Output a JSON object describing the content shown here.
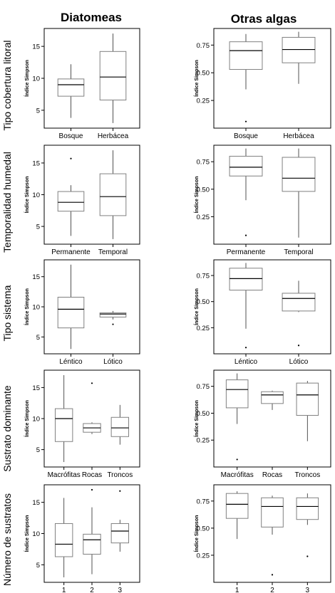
{
  "column_titles": [
    "Diatomeas",
    "Otras algas"
  ],
  "row_titles": [
    "Tipo cobertura  litoral",
    "Temporalidad humedal",
    "Tipo sistema",
    "Sustrato dominante",
    "Número de sustratos"
  ],
  "colors": {
    "box_stroke": "#808080",
    "whisker": "#404040",
    "median": "#000000",
    "frame": "#000000"
  },
  "chart_data": [
    {
      "type": "box",
      "column": "Diatomeas",
      "row": "Tipo cobertura  litoral",
      "ylabel": "Índice Simpson",
      "ylim": [
        2.2,
        17.8
      ],
      "yticks": [
        5,
        10,
        15
      ],
      "yticklabels": [
        "5",
        "10",
        "15"
      ],
      "categories": [
        "Bosque",
        "Herbácea"
      ],
      "boxes": [
        {
          "category": "Bosque",
          "whislo": 3.8,
          "q1": 7.2,
          "med": 9.0,
          "q3": 9.9,
          "whishi": 12.2,
          "outliers": []
        },
        {
          "category": "Herbácea",
          "whislo": 3.0,
          "q1": 6.6,
          "med": 10.2,
          "q3": 14.2,
          "whishi": 17.0,
          "outliers": []
        }
      ]
    },
    {
      "type": "box",
      "column": "Otras algas",
      "row": "Tipo cobertura  litoral",
      "ylabel": "Índice Simpson",
      "ylim": [
        0.0,
        0.9
      ],
      "yticks": [
        0.25,
        0.5,
        0.75
      ],
      "yticklabels": [
        "0.25",
        "0.50",
        "0.75"
      ],
      "categories": [
        "Bosque",
        "Herbácea"
      ],
      "boxes": [
        {
          "category": "Bosque",
          "whislo": 0.35,
          "q1": 0.53,
          "med": 0.7,
          "q3": 0.78,
          "whishi": 0.85,
          "outliers": [
            0.06
          ]
        },
        {
          "category": "Herbácea",
          "whislo": 0.4,
          "q1": 0.59,
          "med": 0.71,
          "q3": 0.82,
          "whishi": 0.87,
          "outliers": []
        }
      ]
    },
    {
      "type": "box",
      "column": "Diatomeas",
      "row": "Temporalidad humedal",
      "ylabel": "Índice Simpson",
      "ylim": [
        2.2,
        17.8
      ],
      "yticks": [
        5,
        10,
        15
      ],
      "yticklabels": [
        "5",
        "10",
        "15"
      ],
      "categories": [
        "Permanente",
        "Temporal"
      ],
      "boxes": [
        {
          "category": "Permanente",
          "whislo": 3.5,
          "q1": 7.4,
          "med": 8.8,
          "q3": 10.5,
          "whishi": 11.5,
          "outliers": [
            15.7
          ]
        },
        {
          "category": "Temporal",
          "whislo": 3.0,
          "q1": 6.7,
          "med": 9.7,
          "q3": 13.3,
          "whishi": 17.0,
          "outliers": []
        }
      ]
    },
    {
      "type": "box",
      "column": "Otras algas",
      "row": "Temporalidad humedal",
      "ylabel": "Índice Simpson",
      "ylim": [
        0.0,
        0.9
      ],
      "yticks": [
        0.25,
        0.5,
        0.75
      ],
      "yticklabels": [
        "0.25",
        "0.50",
        "0.75"
      ],
      "categories": [
        "Permanente",
        "Temporal"
      ],
      "boxes": [
        {
          "category": "Permanente",
          "whislo": 0.4,
          "q1": 0.62,
          "med": 0.7,
          "q3": 0.8,
          "whishi": 0.87,
          "outliers": [
            0.08
          ]
        },
        {
          "category": "Temporal",
          "whislo": 0.06,
          "q1": 0.48,
          "med": 0.6,
          "q3": 0.79,
          "whishi": 0.87,
          "outliers": []
        }
      ]
    },
    {
      "type": "box",
      "column": "Diatomeas",
      "row": "Tipo sistema",
      "ylabel": "Índice Simpson",
      "ylim": [
        2.2,
        17.8
      ],
      "yticks": [
        5,
        10,
        15
      ],
      "yticklabels": [
        "5",
        "10",
        "15"
      ],
      "categories": [
        "Léntico",
        "Lótico"
      ],
      "boxes": [
        {
          "category": "Léntico",
          "whislo": 3.0,
          "q1": 6.5,
          "med": 9.6,
          "q3": 11.6,
          "whishi": 17.0,
          "outliers": []
        },
        {
          "category": "Lótico",
          "whislo": 7.9,
          "q1": 8.3,
          "med": 8.8,
          "q3": 9.0,
          "whishi": 9.3,
          "outliers": [
            7.1
          ]
        }
      ]
    },
    {
      "type": "box",
      "column": "Otras algas",
      "row": "Tipo sistema",
      "ylabel": "Índice Simpson",
      "ylim": [
        0.0,
        0.9
      ],
      "yticks": [
        0.25,
        0.5,
        0.75
      ],
      "yticklabels": [
        "0.25",
        "0.50",
        "0.75"
      ],
      "categories": [
        "Léntico",
        "Lótico"
      ],
      "boxes": [
        {
          "category": "Léntico",
          "whislo": 0.24,
          "q1": 0.61,
          "med": 0.72,
          "q3": 0.82,
          "whishi": 0.87,
          "outliers": [
            0.06
          ]
        },
        {
          "category": "Lótico",
          "whislo": 0.4,
          "q1": 0.41,
          "med": 0.53,
          "q3": 0.58,
          "whishi": 0.7,
          "outliers": [
            0.08
          ]
        }
      ]
    },
    {
      "type": "box",
      "column": "Diatomeas",
      "row": "Sustrato dominante",
      "ylabel": "Índice Simpson",
      "ylim": [
        2.2,
        17.8
      ],
      "yticks": [
        5,
        10,
        15
      ],
      "yticklabels": [
        "5",
        "10",
        "15"
      ],
      "categories": [
        "Macrófitas",
        "Rocas",
        "Troncos"
      ],
      "boxes": [
        {
          "category": "Macrófitas",
          "whislo": 3.0,
          "q1": 6.3,
          "med": 10.0,
          "q3": 11.6,
          "whishi": 17.0,
          "outliers": []
        },
        {
          "category": "Rocas",
          "whislo": 7.5,
          "q1": 7.8,
          "med": 8.5,
          "q3": 9.2,
          "whishi": 9.4,
          "outliers": [
            15.7
          ]
        },
        {
          "category": "Troncos",
          "whislo": 5.8,
          "q1": 7.1,
          "med": 8.5,
          "q3": 10.2,
          "whishi": 12.2,
          "outliers": []
        }
      ]
    },
    {
      "type": "box",
      "column": "Otras algas",
      "row": "Sustrato dominante",
      "ylabel": "Índice Simpson",
      "ylim": [
        0.0,
        0.9
      ],
      "yticks": [
        0.25,
        0.5,
        0.75
      ],
      "yticklabels": [
        "0.25",
        "0.50",
        "0.75"
      ],
      "categories": [
        "Macrófitas",
        "Rocas",
        "Troncos"
      ],
      "boxes": [
        {
          "category": "Macrófitas",
          "whislo": 0.4,
          "q1": 0.55,
          "med": 0.72,
          "q3": 0.81,
          "whishi": 0.87,
          "outliers": [
            0.07
          ]
        },
        {
          "category": "Rocas",
          "whislo": 0.53,
          "q1": 0.59,
          "med": 0.67,
          "q3": 0.7,
          "whishi": 0.71,
          "outliers": []
        },
        {
          "category": "Troncos",
          "whislo": 0.24,
          "q1": 0.48,
          "med": 0.67,
          "q3": 0.78,
          "whishi": 0.8,
          "outliers": []
        }
      ]
    },
    {
      "type": "box",
      "column": "Diatomeas",
      "row": "Número de sustratos",
      "ylabel": "Índice Simpson",
      "ylim": [
        2.2,
        17.8
      ],
      "yticks": [
        5,
        10,
        15
      ],
      "yticklabels": [
        "5",
        "10",
        "15"
      ],
      "categories": [
        "1",
        "2",
        "3"
      ],
      "boxes": [
        {
          "category": "1",
          "whislo": 3.0,
          "q1": 6.3,
          "med": 8.3,
          "q3": 11.6,
          "whishi": 15.7,
          "outliers": []
        },
        {
          "category": "2",
          "whislo": 3.5,
          "q1": 6.7,
          "med": 9.0,
          "q3": 9.9,
          "whishi": 14.2,
          "outliers": [
            17.0
          ]
        },
        {
          "category": "3",
          "whislo": 7.1,
          "q1": 8.5,
          "med": 10.4,
          "q3": 11.6,
          "whishi": 12.2,
          "outliers": [
            16.8
          ]
        }
      ]
    },
    {
      "type": "box",
      "column": "Otras algas",
      "row": "Número de sustratos",
      "ylabel": "Índice Simpson",
      "ylim": [
        0.0,
        0.9
      ],
      "yticks": [
        0.25,
        0.5,
        0.75
      ],
      "yticklabels": [
        "0.25",
        "0.50",
        "0.75"
      ],
      "categories": [
        "1",
        "2",
        "3"
      ],
      "boxes": [
        {
          "category": "1",
          "whislo": 0.4,
          "q1": 0.59,
          "med": 0.72,
          "q3": 0.82,
          "whishi": 0.84,
          "outliers": []
        },
        {
          "category": "2",
          "whislo": 0.44,
          "q1": 0.51,
          "med": 0.7,
          "q3": 0.78,
          "whishi": 0.8,
          "outliers": [
            0.07
          ]
        },
        {
          "category": "3",
          "whislo": 0.53,
          "q1": 0.58,
          "med": 0.7,
          "q3": 0.78,
          "whishi": 0.82,
          "outliers": [
            0.24
          ]
        }
      ]
    }
  ]
}
